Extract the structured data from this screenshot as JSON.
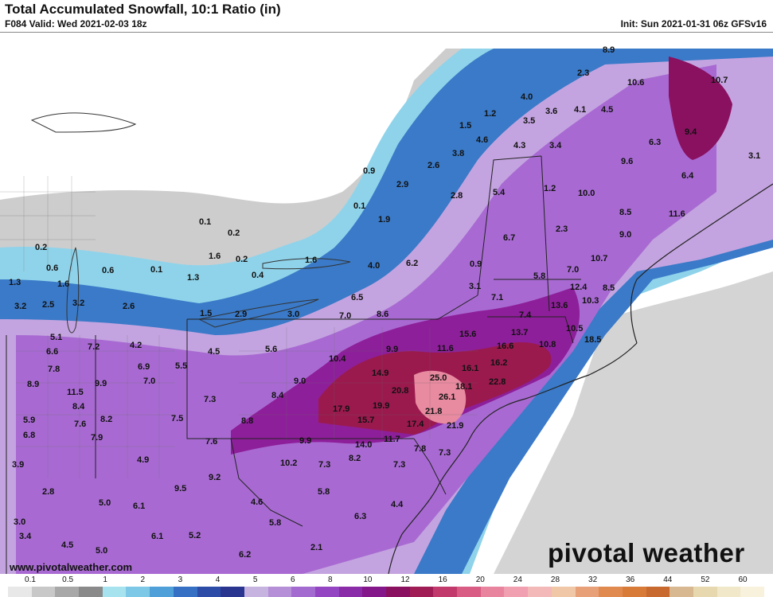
{
  "header": {
    "title": "Total Accumulated Snowfall, 10:1 Ratio (in)",
    "valid": "F084 Valid: Wed 2021-02-03 18z",
    "init": "Init: Sun 2021-01-31 06z GFSv16"
  },
  "footer": {
    "website": "www.pivotalweather.com",
    "brand": "pivotal weather"
  },
  "colorbar": {
    "ticks": [
      "0.1",
      "0.5",
      "1",
      "2",
      "3",
      "4",
      "5",
      "6",
      "8",
      "10",
      "12",
      "16",
      "20",
      "24",
      "28",
      "32",
      "36",
      "44",
      "52",
      "60"
    ],
    "colors": [
      "#e8e8e8",
      "#c8c8c8",
      "#a8a8a8",
      "#8a8a8a",
      "#a6e3ef",
      "#7cc8e6",
      "#4fa0d8",
      "#3670c4",
      "#2c4ca8",
      "#2a3590",
      "#c7b3e0",
      "#b58fd8",
      "#a36bd0",
      "#9445c2",
      "#8a2ba8",
      "#84188a",
      "#8a1060",
      "#a01c55",
      "#c23a6b",
      "#d85c84",
      "#e8849e",
      "#f0a0b0",
      "#f3b8b8",
      "#f0c8a8",
      "#e8a078",
      "#e08a50",
      "#d87a38",
      "#c86a30",
      "#d8b890",
      "#e8d8b0",
      "#f0e8c8",
      "#f8f2dc"
    ]
  },
  "map_labels": [
    {
      "t": "8.9"
    },
    {
      "t": "2.3"
    },
    {
      "t": "10.6"
    },
    {
      "t": "10.7"
    },
    {
      "t": "4.0"
    },
    {
      "t": "1.2"
    },
    {
      "t": "3.6"
    },
    {
      "t": "4.1"
    },
    {
      "t": "4.5"
    },
    {
      "t": "3.5"
    },
    {
      "t": "1.5"
    },
    {
      "t": "4.6"
    },
    {
      "t": "4.3"
    },
    {
      "t": "3.4"
    },
    {
      "t": "9.4"
    },
    {
      "t": "6.3"
    },
    {
      "t": "3.8"
    },
    {
      "t": "9.6"
    },
    {
      "t": "3.1"
    },
    {
      "t": "0.9"
    },
    {
      "t": "2.6"
    },
    {
      "t": "6.4"
    },
    {
      "t": "2.9"
    },
    {
      "t": "2.8"
    },
    {
      "t": "5.4"
    },
    {
      "t": "1.2"
    },
    {
      "t": "10.0"
    },
    {
      "t": "0.1"
    },
    {
      "t": "1.9"
    },
    {
      "t": "8.5"
    },
    {
      "t": "11.6"
    },
    {
      "t": "0.1"
    },
    {
      "t": "0.2"
    },
    {
      "t": "2.3"
    },
    {
      "t": "9.0"
    },
    {
      "t": "6.7"
    },
    {
      "t": "0.2"
    },
    {
      "t": "1.6"
    },
    {
      "t": "0.2"
    },
    {
      "t": "1.6"
    },
    {
      "t": "0.9"
    },
    {
      "t": "10.7"
    },
    {
      "t": "4.0"
    },
    {
      "t": "6.2"
    },
    {
      "t": "7.0"
    },
    {
      "t": "0.6"
    },
    {
      "t": "0.6"
    },
    {
      "t": "0.1"
    },
    {
      "t": "1.3"
    },
    {
      "t": "0.4"
    },
    {
      "t": "5.8"
    },
    {
      "t": "1.3"
    },
    {
      "t": "1.6"
    },
    {
      "t": "3.1"
    },
    {
      "t": "12.4"
    },
    {
      "t": "8.5"
    },
    {
      "t": "6.5"
    },
    {
      "t": "7.1"
    },
    {
      "t": "3.2"
    },
    {
      "t": "2.5"
    },
    {
      "t": "3.2"
    },
    {
      "t": "2.6"
    },
    {
      "t": "13.6"
    },
    {
      "t": "10.3"
    },
    {
      "t": "1.5"
    },
    {
      "t": "2.9"
    },
    {
      "t": "3.0"
    },
    {
      "t": "7.0"
    },
    {
      "t": "8.6"
    },
    {
      "t": "7.4"
    },
    {
      "t": "10.5"
    },
    {
      "t": "15.6"
    },
    {
      "t": "13.7"
    },
    {
      "t": "5.1"
    },
    {
      "t": "4.2"
    },
    {
      "t": "4.5"
    },
    {
      "t": "5.6"
    },
    {
      "t": "9.9"
    },
    {
      "t": "11.6"
    },
    {
      "t": "16.6"
    },
    {
      "t": "10.8"
    },
    {
      "t": "18.5"
    },
    {
      "t": "6.6"
    },
    {
      "t": "7.2"
    },
    {
      "t": "10.4"
    },
    {
      "t": "16.2"
    },
    {
      "t": "7.8"
    },
    {
      "t": "6.9"
    },
    {
      "t": "5.5"
    },
    {
      "t": "14.9"
    },
    {
      "t": "16.1"
    },
    {
      "t": "25.0"
    },
    {
      "t": "8.9"
    },
    {
      "t": "9.9"
    },
    {
      "t": "7.0"
    },
    {
      "t": "9.0"
    },
    {
      "t": "20.8"
    },
    {
      "t": "18.1"
    },
    {
      "t": "22.8"
    },
    {
      "t": "11.5"
    },
    {
      "t": "8.4"
    },
    {
      "t": "7.3"
    },
    {
      "t": "26.1"
    },
    {
      "t": "8.4"
    },
    {
      "t": "5.9"
    },
    {
      "t": "7.6"
    },
    {
      "t": "8.2"
    },
    {
      "t": "7.5"
    },
    {
      "t": "17.9"
    },
    {
      "t": "19.9"
    },
    {
      "t": "21.8"
    },
    {
      "t": "8.8"
    },
    {
      "t": "15.7"
    },
    {
      "t": "17.4"
    },
    {
      "t": "6.8"
    },
    {
      "t": "7.9"
    },
    {
      "t": "21.9"
    },
    {
      "t": "7.6"
    },
    {
      "t": "9.9"
    },
    {
      "t": "14.0"
    },
    {
      "t": "11.7"
    },
    {
      "t": "7.8"
    },
    {
      "t": "7.3"
    },
    {
      "t": "3.9"
    },
    {
      "t": "4.9"
    },
    {
      "t": "10.2"
    },
    {
      "t": "7.3"
    },
    {
      "t": "8.2"
    },
    {
      "t": "7.3"
    },
    {
      "t": "2.8"
    },
    {
      "t": "9.2"
    },
    {
      "t": "9.5"
    },
    {
      "t": "5.8"
    },
    {
      "t": "5.0"
    },
    {
      "t": "6.1"
    },
    {
      "t": "4.6"
    },
    {
      "t": "4.4"
    },
    {
      "t": "3.0"
    },
    {
      "t": "6.3"
    },
    {
      "t": "5.8"
    },
    {
      "t": "3.4"
    },
    {
      "t": "4.5"
    },
    {
      "t": "6.1"
    },
    {
      "t": "5.2"
    },
    {
      "t": "5.0"
    },
    {
      "t": "2.1"
    },
    {
      "t": "6.2"
    }
  ]
}
